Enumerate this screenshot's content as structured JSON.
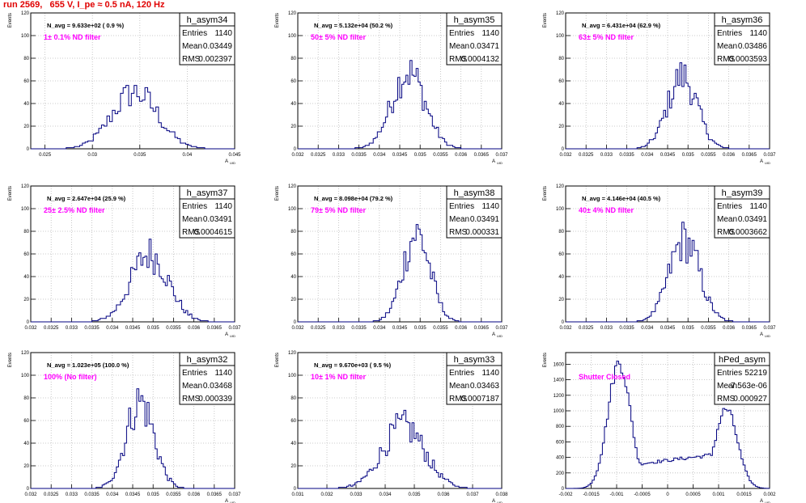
{
  "page_title": "run 2569,   655 V, I_pe ≈ 0.5 nA, 120 Hz",
  "y_axis_label": "Events",
  "x_axis_label_main": "A",
  "x_axis_label_sub": "UID",
  "stats_labels": {
    "entries": "Entries",
    "mean": "Mean",
    "rms": "RMS"
  },
  "colors": {
    "histogram": "#000080",
    "grid": "#bbbbbb",
    "annotation": "#ff00ff",
    "title": "#e00000"
  },
  "chart_data": [
    {
      "type": "histogram",
      "name": "h_asym34",
      "navg": "N_avg = 9.633e+02 ( 0.9 %)",
      "filter": "1± 0.1% ND filter",
      "entries": "1140",
      "mean": "0.03449",
      "rms": "0.002397",
      "xlim": [
        0.0235,
        0.045
      ],
      "ylim": [
        0,
        120
      ],
      "xticks": [
        "0.025",
        "0.03",
        "0.035",
        "0.04",
        "0.045"
      ],
      "xtickvals": [
        0.025,
        0.03,
        0.035,
        0.04,
        0.045
      ],
      "yticks": [
        0,
        20,
        40,
        60,
        80,
        100,
        120
      ],
      "center": 0.03449,
      "sigma": 0.0024,
      "peak": 50,
      "bins": 75
    },
    {
      "type": "histogram",
      "name": "h_asym35",
      "navg": "N_avg = 5.132e+04 (50.2 %)",
      "filter": "50± 5% ND filter",
      "entries": "1140",
      "mean": "0.03471",
      "rms": "0.0004132",
      "xlim": [
        0.032,
        0.037
      ],
      "ylim": [
        0,
        120
      ],
      "xticks": [
        "0.032",
        "0.0325",
        "0.033",
        "0.0335",
        "0.034",
        "0.0345",
        "0.035",
        "0.0355",
        "0.036",
        "0.0365",
        "0.037"
      ],
      "xtickvals": [
        0.032,
        0.0325,
        0.033,
        0.0335,
        0.034,
        0.0345,
        0.035,
        0.0355,
        0.036,
        0.0365,
        0.037
      ],
      "yticks": [
        0,
        20,
        40,
        60,
        80,
        100,
        120
      ],
      "center": 0.03471,
      "sigma": 0.00041,
      "peak": 68,
      "bins": 100
    },
    {
      "type": "histogram",
      "name": "h_asym36",
      "navg": "N_avg = 6.431e+04 (62.9 %)",
      "filter": "63± 5% ND filter",
      "entries": "1140",
      "mean": "0.03486",
      "rms": "0.0003593",
      "xlim": [
        0.032,
        0.037
      ],
      "ylim": [
        0,
        120
      ],
      "xticks": [
        "0.032",
        "0.0325",
        "0.033",
        "0.0335",
        "0.034",
        "0.0345",
        "0.035",
        "0.0355",
        "0.036",
        "0.0365",
        "0.037"
      ],
      "xtickvals": [
        0.032,
        0.0325,
        0.033,
        0.0335,
        0.034,
        0.0345,
        0.035,
        0.0355,
        0.036,
        0.0365,
        0.037
      ],
      "yticks": [
        0,
        20,
        40,
        60,
        80,
        100,
        120
      ],
      "center": 0.03486,
      "sigma": 0.00036,
      "peak": 64,
      "bins": 100
    },
    {
      "type": "histogram",
      "name": "h_asym37",
      "navg": "N_avg = 2.647e+04 (25.9 %)",
      "filter": "25± 2.5% ND filter",
      "entries": "1140",
      "mean": "0.03491",
      "rms": "0.0004615",
      "xlim": [
        0.032,
        0.037
      ],
      "ylim": [
        0,
        120
      ],
      "xticks": [
        "0.032",
        "0.0325",
        "0.033",
        "0.0335",
        "0.034",
        "0.0345",
        "0.035",
        "0.0355",
        "0.036",
        "0.0365",
        "0.037"
      ],
      "xtickvals": [
        0.032,
        0.0325,
        0.033,
        0.0335,
        0.034,
        0.0345,
        0.035,
        0.0355,
        0.036,
        0.0365,
        0.037
      ],
      "yticks": [
        0,
        20,
        40,
        60,
        80,
        100,
        120
      ],
      "center": 0.03491,
      "sigma": 0.00046,
      "peak": 60,
      "bins": 100
    },
    {
      "type": "histogram",
      "name": "h_asym38",
      "navg": "N_avg = 8.098e+04 (79.2 %)",
      "filter": "79± 5% ND filter",
      "entries": "1140",
      "mean": "0.03491",
      "rms": "0.000331",
      "xlim": [
        0.032,
        0.037
      ],
      "ylim": [
        0,
        120
      ],
      "xticks": [
        "0.032",
        "0.0325",
        "0.033",
        "0.0335",
        "0.034",
        "0.0345",
        "0.035",
        "0.0355",
        "0.036",
        "0.0365",
        "0.037"
      ],
      "xtickvals": [
        0.032,
        0.0325,
        0.033,
        0.0335,
        0.034,
        0.0345,
        0.035,
        0.0355,
        0.036,
        0.0365,
        0.037
      ],
      "yticks": [
        0,
        20,
        40,
        60,
        80,
        100,
        120
      ],
      "center": 0.03491,
      "sigma": 0.00033,
      "peak": 78,
      "bins": 100
    },
    {
      "type": "histogram",
      "name": "h_asym39",
      "navg": "N_avg = 4.146e+04 (40.5 %)",
      "filter": "40± 4% ND filter",
      "entries": "1140",
      "mean": "0.03491",
      "rms": "0.0003662",
      "xlim": [
        0.032,
        0.037
      ],
      "ylim": [
        0,
        120
      ],
      "xticks": [
        "0.032",
        "0.0325",
        "0.033",
        "0.0335",
        "0.034",
        "0.0345",
        "0.035",
        "0.0355",
        "0.036",
        "0.0365",
        "0.037"
      ],
      "xtickvals": [
        0.032,
        0.0325,
        0.033,
        0.0335,
        0.034,
        0.0345,
        0.035,
        0.0355,
        0.036,
        0.0365,
        0.037
      ],
      "yticks": [
        0,
        20,
        40,
        60,
        80,
        100,
        120
      ],
      "center": 0.03491,
      "sigma": 0.00037,
      "peak": 72,
      "bins": 100
    },
    {
      "type": "histogram",
      "name": "h_asym32",
      "navg": "N_avg = 1.023e+05 (100.0 %)",
      "filter": "100% (No filter)",
      "entries": "1140",
      "mean": "0.03468",
      "rms": "0.000339",
      "xlim": [
        0.032,
        0.037
      ],
      "ylim": [
        0,
        120
      ],
      "xticks": [
        "0.032",
        "0.0325",
        "0.033",
        "0.0335",
        "0.034",
        "0.0345",
        "0.035",
        "0.0355",
        "0.036",
        "0.0365",
        "0.037"
      ],
      "xtickvals": [
        0.032,
        0.0325,
        0.033,
        0.0335,
        0.034,
        0.0345,
        0.035,
        0.0355,
        0.036,
        0.0365,
        0.037
      ],
      "yticks": [
        0,
        20,
        40,
        60,
        80,
        100,
        120
      ],
      "center": 0.03468,
      "sigma": 0.00034,
      "peak": 77,
      "bins": 100
    },
    {
      "type": "histogram",
      "name": "h_asym33",
      "navg": "N_avg = 9.670e+03 ( 9.5 %)",
      "filter": "10± 1% ND filter",
      "entries": "1140",
      "mean": "0.03463",
      "rms": "0.0007187",
      "xlim": [
        0.031,
        0.038
      ],
      "ylim": [
        0,
        120
      ],
      "xticks": [
        "0.031",
        "0.032",
        "0.033",
        "0.034",
        "0.035",
        "0.036",
        "0.037",
        "0.038"
      ],
      "xtickvals": [
        0.031,
        0.032,
        0.033,
        0.034,
        0.035,
        0.036,
        0.037,
        0.038
      ],
      "yticks": [
        0,
        20,
        40,
        60,
        80,
        100,
        120
      ],
      "center": 0.03463,
      "sigma": 0.00072,
      "peak": 55,
      "bins": 100
    },
    {
      "type": "histogram",
      "name": "hPed_asym",
      "navg": "",
      "filter": "Shutter Closed",
      "entries": "52219",
      "mean": "-7.563e-06",
      "rms": "0.000927",
      "xlim": [
        -0.002,
        0.002
      ],
      "ylim": [
        0,
        1750
      ],
      "xticks": [
        "-0.002",
        "-0.0015",
        "-0.001",
        "-0.0005",
        "0",
        "0.0005",
        "0.001",
        "0.0015",
        "0.002"
      ],
      "xtickvals": [
        -0.002,
        -0.0015,
        -0.001,
        -0.0005,
        0,
        0.0005,
        0.001,
        0.0015,
        0.002
      ],
      "yticks": [
        0,
        200,
        400,
        600,
        800,
        1000,
        1200,
        1400,
        1600
      ],
      "bimodal": true,
      "bins": 100
    }
  ]
}
